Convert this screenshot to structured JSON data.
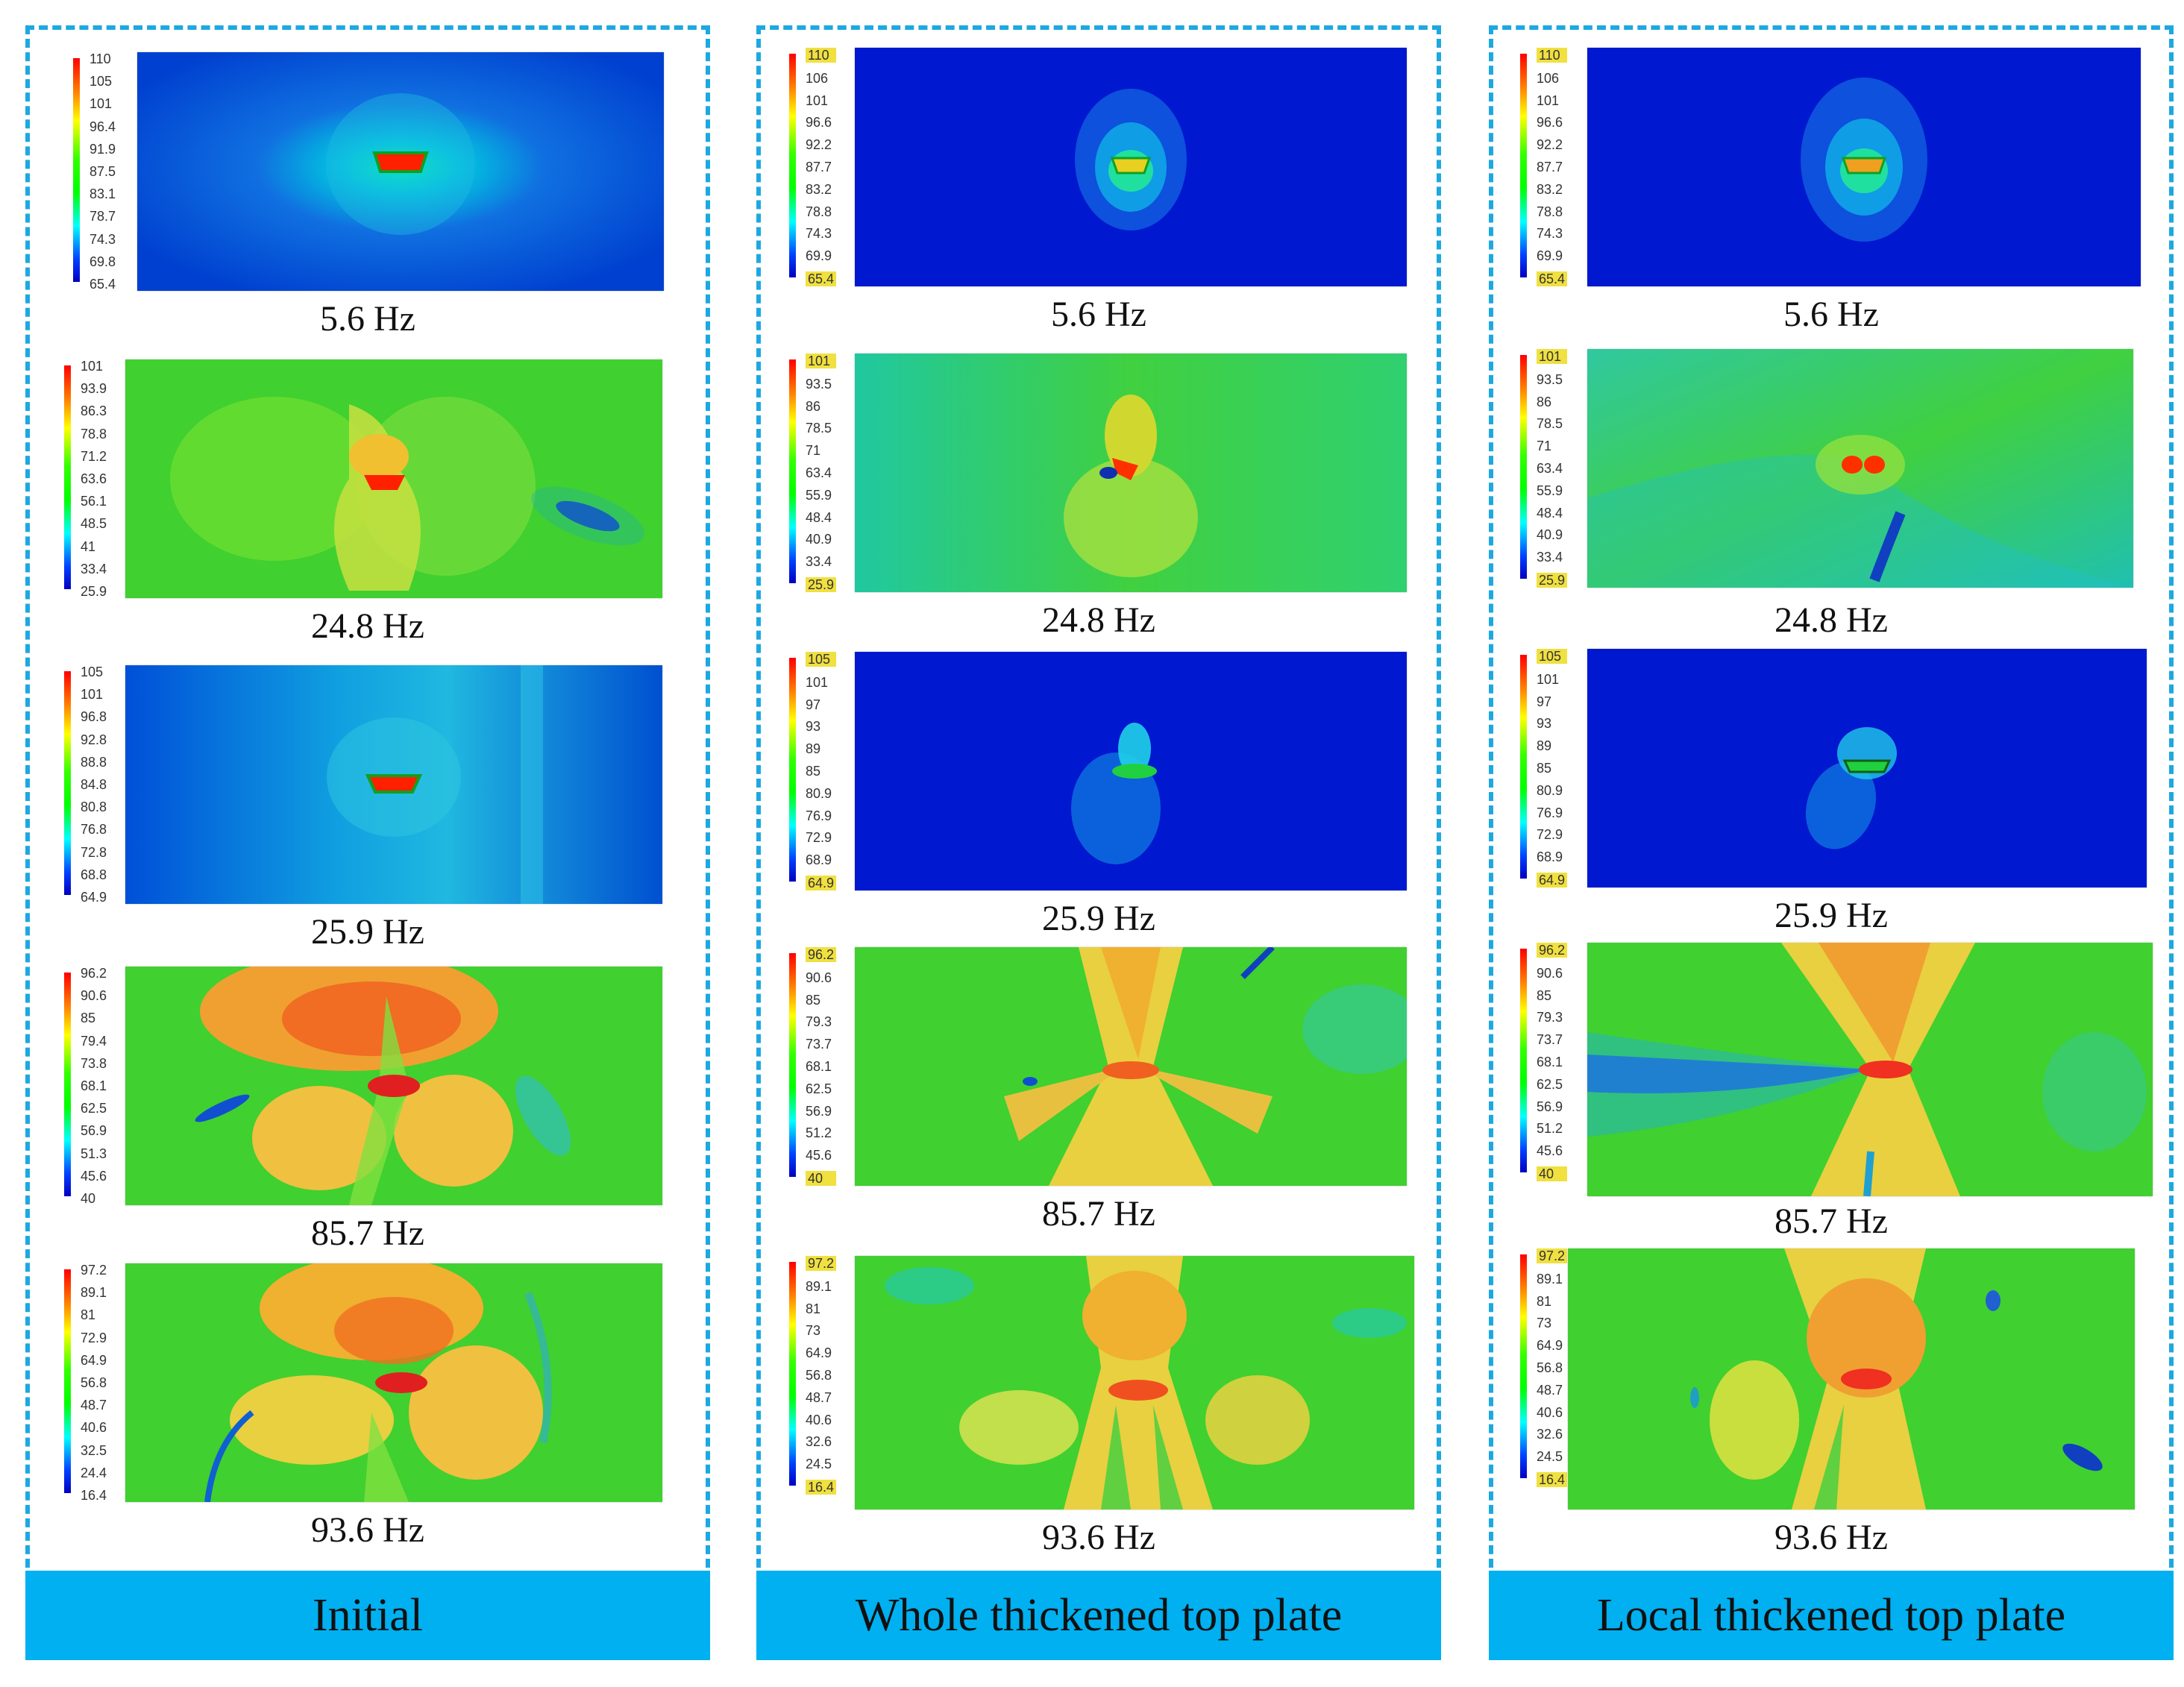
{
  "columns": [
    {
      "label": "Initial",
      "rows": [
        {
          "freq": "5.6 Hz",
          "ticks": [
            "110",
            "105",
            "101",
            "96.4",
            "91.9",
            "87.5",
            "83.1",
            "78.7",
            "74.3",
            "69.8",
            "65.4"
          ]
        },
        {
          "freq": "24.8 Hz",
          "ticks": [
            "101",
            "93.9",
            "86.3",
            "78.8",
            "71.2",
            "63.6",
            "56.1",
            "48.5",
            "41",
            "33.4",
            "25.9"
          ]
        },
        {
          "freq": "25.9 Hz",
          "ticks": [
            "105",
            "101",
            "96.8",
            "92.8",
            "88.8",
            "84.8",
            "80.8",
            "76.8",
            "72.8",
            "68.8",
            "64.9"
          ]
        },
        {
          "freq": "85.7 Hz",
          "ticks": [
            "96.2",
            "90.6",
            "85",
            "79.4",
            "73.8",
            "68.1",
            "62.5",
            "56.9",
            "51.3",
            "45.6",
            "40"
          ]
        },
        {
          "freq": "93.6 Hz",
          "ticks": [
            "97.2",
            "89.1",
            "81",
            "72.9",
            "64.9",
            "56.8",
            "48.7",
            "40.6",
            "32.5",
            "24.4",
            "16.4"
          ]
        }
      ]
    },
    {
      "label": "Whole thickened top plate",
      "rows": [
        {
          "freq": "5.6 Hz",
          "ticks": [
            "110",
            "106",
            "101",
            "96.6",
            "92.2",
            "87.7",
            "83.2",
            "78.8",
            "74.3",
            "69.9",
            "65.4"
          ]
        },
        {
          "freq": "24.8 Hz",
          "ticks": [
            "101",
            "93.5",
            "86",
            "78.5",
            "71",
            "63.4",
            "55.9",
            "48.4",
            "40.9",
            "33.4",
            "25.9"
          ]
        },
        {
          "freq": "25.9 Hz",
          "ticks": [
            "105",
            "101",
            "97",
            "93",
            "89",
            "85",
            "80.9",
            "76.9",
            "72.9",
            "68.9",
            "64.9"
          ]
        },
        {
          "freq": "85.7 Hz",
          "ticks": [
            "96.2",
            "90.6",
            "85",
            "79.3",
            "73.7",
            "68.1",
            "62.5",
            "56.9",
            "51.2",
            "45.6",
            "40"
          ]
        },
        {
          "freq": "93.6 Hz",
          "ticks": [
            "97.2",
            "89.1",
            "81",
            "73",
            "64.9",
            "56.8",
            "48.7",
            "40.6",
            "32.6",
            "24.5",
            "16.4"
          ]
        }
      ]
    },
    {
      "label": "Local thickened top plate",
      "rows": [
        {
          "freq": "5.6 Hz",
          "ticks": [
            "110",
            "106",
            "101",
            "96.6",
            "92.2",
            "87.7",
            "83.2",
            "78.8",
            "74.3",
            "69.9",
            "65.4"
          ]
        },
        {
          "freq": "24.8 Hz",
          "ticks": [
            "101",
            "93.5",
            "86",
            "78.5",
            "71",
            "63.4",
            "55.9",
            "48.4",
            "40.9",
            "33.4",
            "25.9"
          ]
        },
        {
          "freq": "25.9 Hz",
          "ticks": [
            "105",
            "101",
            "97",
            "93",
            "89",
            "85",
            "80.9",
            "76.9",
            "72.9",
            "68.9",
            "64.9"
          ]
        },
        {
          "freq": "85.7 Hz",
          "ticks": [
            "96.2",
            "90.6",
            "85",
            "79.3",
            "73.7",
            "68.1",
            "62.5",
            "56.9",
            "51.2",
            "45.6",
            "40"
          ]
        },
        {
          "freq": "93.6 Hz",
          "ticks": [
            "97.2",
            "89.1",
            "81",
            "73",
            "64.9",
            "56.8",
            "48.7",
            "40.6",
            "32.6",
            "24.5",
            "16.4"
          ]
        }
      ]
    }
  ],
  "colors": {
    "frame": "#1ea8e0",
    "footer": "#00b0f0",
    "tick_highlight": "#f0e040"
  }
}
